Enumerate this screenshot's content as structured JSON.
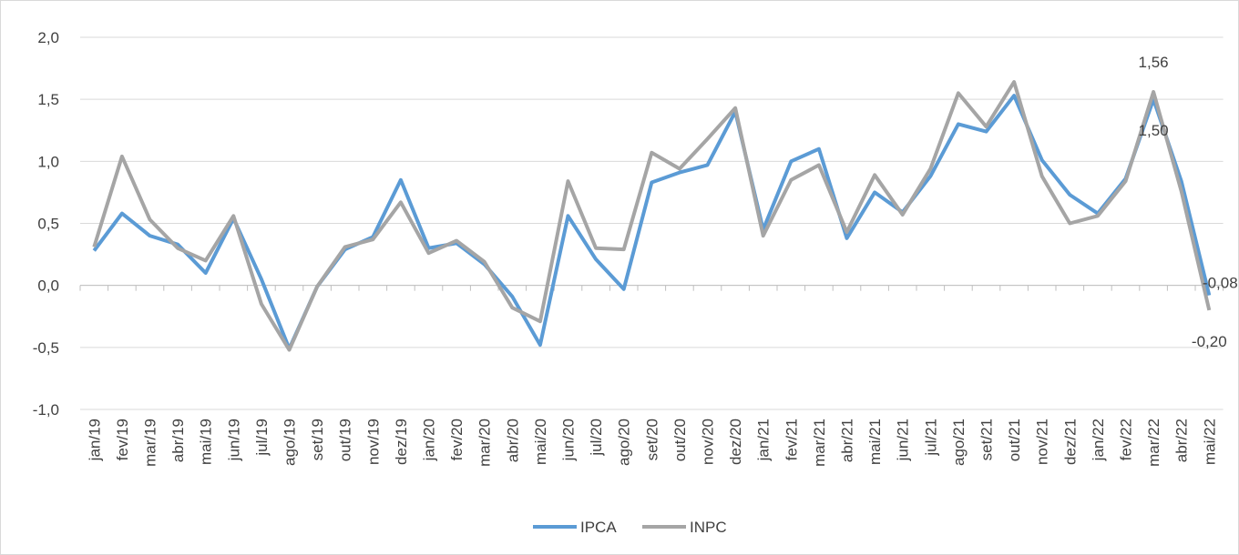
{
  "chart_data": {
    "type": "line",
    "categories": [
      "jan/19",
      "fev/19",
      "mar/19",
      "abr/19",
      "mai/19",
      "jun/19",
      "jul/19",
      "ago/19",
      "set/19",
      "out/19",
      "nov/19",
      "dez/19",
      "jan/20",
      "fev/20",
      "mar/20",
      "abr/20",
      "mai/20",
      "jun/20",
      "jul/20",
      "ago/20",
      "set/20",
      "out/20",
      "nov/20",
      "dez/20",
      "jan/21",
      "fev/21",
      "mar/21",
      "abr/21",
      "mai/21",
      "jun/21",
      "jul/21",
      "ago/21",
      "set/21",
      "out/21",
      "nov/21",
      "dez/21",
      "jan/22",
      "fev/22",
      "mar/22",
      "abr/22",
      "mai/22"
    ],
    "series": [
      {
        "name": "IPCA",
        "color": "#5b9bd5",
        "values": [
          0.28,
          0.58,
          0.4,
          0.33,
          0.1,
          0.54,
          0.05,
          -0.51,
          -0.01,
          0.29,
          0.39,
          0.85,
          0.3,
          0.34,
          0.17,
          -0.09,
          -0.48,
          0.56,
          0.21,
          -0.03,
          0.83,
          0.91,
          0.97,
          1.4,
          0.45,
          1.0,
          1.1,
          0.38,
          0.75,
          0.59,
          0.88,
          1.3,
          1.24,
          1.53,
          1.01,
          0.73,
          0.58,
          0.86,
          1.5,
          0.84,
          -0.08
        ],
        "value_labels": [
          null,
          null,
          null,
          null,
          null,
          null,
          null,
          null,
          null,
          null,
          null,
          null,
          null,
          null,
          null,
          null,
          null,
          null,
          null,
          null,
          null,
          null,
          null,
          null,
          null,
          null,
          null,
          null,
          null,
          null,
          null,
          null,
          null,
          null,
          null,
          null,
          null,
          null,
          "1,50",
          null,
          "-0,08"
        ]
      },
      {
        "name": "INPC",
        "color": "#a5a5a5",
        "values": [
          0.31,
          1.04,
          0.53,
          0.3,
          0.2,
          0.56,
          -0.15,
          -0.52,
          -0.01,
          0.31,
          0.37,
          0.67,
          0.26,
          0.36,
          0.19,
          -0.18,
          -0.29,
          0.84,
          0.3,
          0.29,
          1.07,
          0.94,
          1.18,
          1.43,
          0.4,
          0.85,
          0.97,
          0.43,
          0.89,
          0.57,
          0.94,
          1.55,
          1.28,
          1.64,
          0.88,
          0.5,
          0.56,
          0.84,
          1.56,
          0.76,
          -0.2
        ],
        "value_labels": [
          null,
          null,
          null,
          null,
          null,
          null,
          null,
          null,
          null,
          null,
          null,
          null,
          null,
          null,
          null,
          null,
          null,
          null,
          null,
          null,
          null,
          null,
          null,
          null,
          null,
          null,
          null,
          null,
          null,
          null,
          null,
          null,
          null,
          null,
          null,
          null,
          null,
          null,
          "1,56",
          null,
          "-0,20"
        ]
      }
    ],
    "ylim": [
      -1.0,
      2.0
    ],
    "yticks": [
      {
        "value": -1.0,
        "label": "-1,0"
      },
      {
        "value": -0.5,
        "label": "-0,5"
      },
      {
        "value": 0,
        "label": "0,0"
      },
      {
        "value": 0.5,
        "label": "0,5"
      },
      {
        "value": 1.0,
        "label": "1,0"
      },
      {
        "value": 1.5,
        "label": "1,5"
      },
      {
        "value": 2.0,
        "label": "2,0"
      }
    ],
    "grid": true
  }
}
